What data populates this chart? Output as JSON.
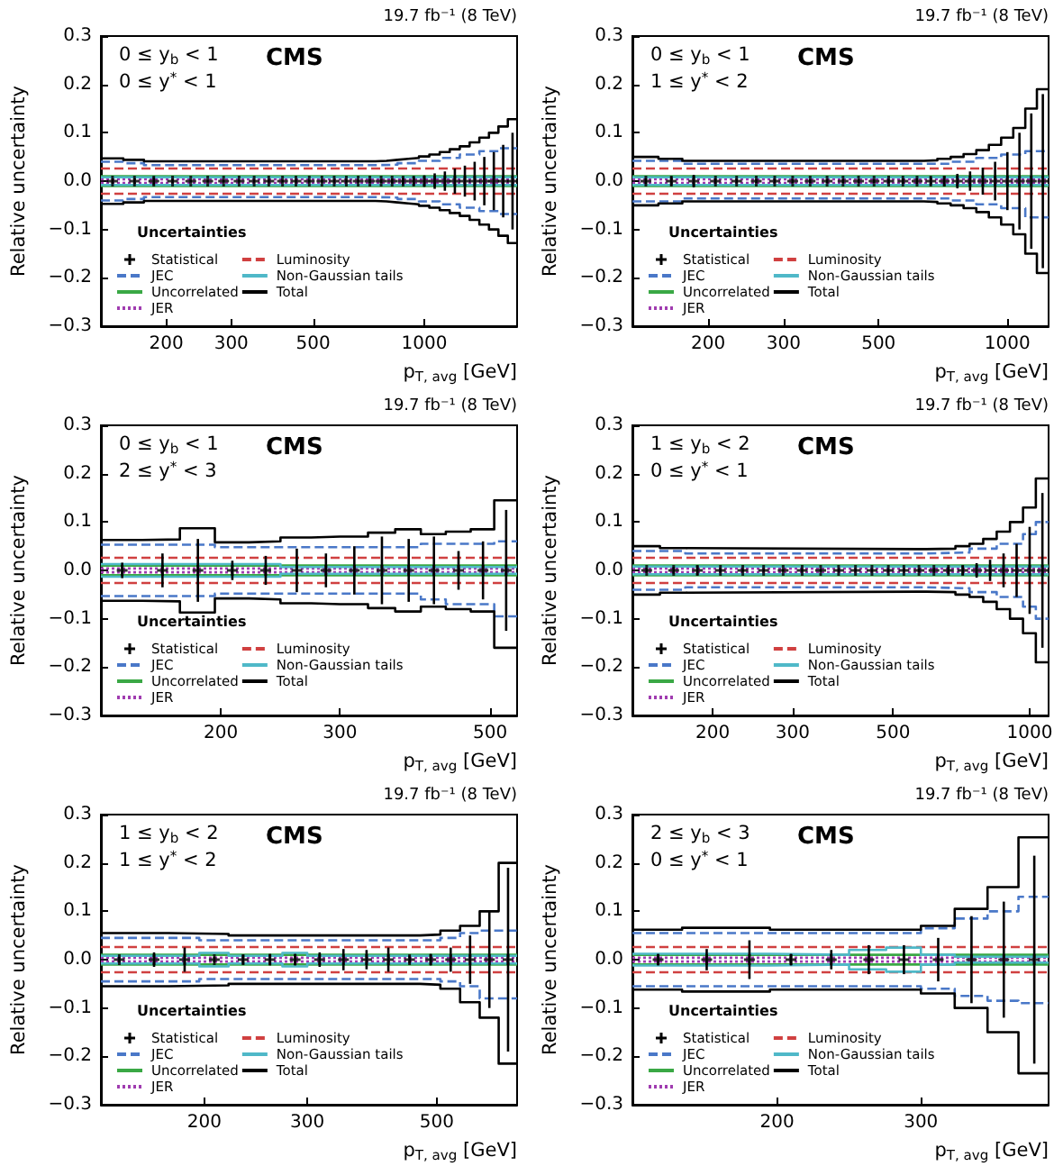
{
  "chart_data": [
    {
      "type": "step",
      "title": "CMS",
      "subtitle": "19.7 fb⁻¹ (8 TeV)",
      "xlabel": "p$_{T, avg}$ [GeV]",
      "ylabel": "Relative uncertainty",
      "legend_title": "Uncertainties",
      "legend": "bottom left",
      "log": "x",
      "xlim": [
        133,
        1784
      ],
      "xticks": [
        200,
        300,
        500,
        1000
      ],
      "ylim": [
        -0.3,
        0.3
      ],
      "yticks": [
        {
          "value": -0.3,
          "label": "−0.3"
        },
        {
          "value": -0.2,
          "label": "−0.2"
        },
        {
          "value": -0.1,
          "label": "−0.1"
        },
        {
          "value": 0,
          "label": "0.0"
        },
        {
          "value": 0.1,
          "label": "0.1"
        },
        {
          "value": 0.2,
          "label": "0.2"
        },
        {
          "value": 0.3,
          "label": "0.3"
        }
      ],
      "annotations": [
        "0 ≤ y$_{b}$ < 1",
        "0 ≤ y$^{*}$ < 1"
      ],
      "series": [
        {
          "name": "Statistical",
          "type": "scatter",
          "color": "#000000",
          "marker": "cross",
          "x": [
            143,
            164,
            185,
            208,
            233,
            259,
            286,
            315,
            346,
            379,
            413,
            449,
            488,
            528,
            570,
            615,
            662,
            712,
            764,
            818,
            876,
            936,
            1000,
            1067,
            1137,
            1210,
            1288,
            1369,
            1454,
            1543,
            1636,
            1734
          ],
          "values": [
            0,
            0,
            0,
            0,
            0,
            0,
            0,
            0,
            0,
            0,
            0,
            0,
            0,
            0,
            0,
            0,
            0,
            0,
            0,
            0,
            0,
            0,
            0,
            0,
            0,
            0,
            0,
            0,
            0,
            0,
            0,
            0
          ],
          "errors": [
            0.005,
            0.006,
            0.008,
            0.004,
            0.003,
            0.003,
            0.003,
            0.003,
            0.003,
            0.003,
            0.003,
            0.003,
            0.003,
            0.003,
            0.003,
            0.003,
            0.003,
            0.004,
            0.004,
            0.005,
            0.007,
            0.009,
            0.012,
            0.016,
            0.02,
            0.026,
            0.032,
            0.04,
            0.05,
            0.06,
            0.075,
            0.1
          ]
        },
        {
          "name": "JEC",
          "color": "#4a78c8",
          "line_style": "dashed",
          "x": [
            133,
            153,
            174,
            737,
            846,
            967,
            1101,
            1248,
            1410,
            1588,
            1784
          ],
          "values": [
            0.04,
            0.037,
            0.033,
            0.034,
            0.037,
            0.042,
            0.048,
            0.055,
            0.062,
            0.068,
            0.068
          ]
        },
        {
          "color": "#4a78c8",
          "line_style": "dashed",
          "x": [
            133,
            153,
            174,
            737,
            846,
            967,
            1101,
            1248,
            1410,
            1588,
            1784
          ],
          "values": [
            -0.04,
            -0.037,
            -0.033,
            -0.034,
            -0.037,
            -0.042,
            -0.048,
            -0.055,
            -0.062,
            -0.068,
            -0.068
          ]
        },
        {
          "name": "Uncorrelated",
          "color": "#3aa845",
          "line_style": "solid",
          "x": [
            133,
            1784
          ],
          "values": [
            0.01,
            0.01
          ]
        },
        {
          "color": "#3aa845",
          "line_style": "solid",
          "x": [
            133,
            1784
          ],
          "values": [
            -0.01,
            -0.01
          ]
        },
        {
          "name": "JER",
          "color": "#a03cb0",
          "line_style": "dotted",
          "x": [
            133,
            1784
          ],
          "values": [
            0.004,
            0.004
          ]
        },
        {
          "color": "#a03cb0",
          "line_style": "dotted",
          "x": [
            133,
            1784
          ],
          "values": [
            -0.004,
            -0.004
          ]
        },
        {
          "name": "Luminosity",
          "color": "#d04040",
          "line_style": "dashed",
          "x": [
            133,
            1784
          ],
          "values": [
            0.026,
            0.026
          ]
        },
        {
          "color": "#d04040",
          "line_style": "dashed",
          "x": [
            133,
            1784
          ],
          "values": [
            -0.026,
            -0.026
          ]
        },
        {
          "name": "Non-Gaussian tails",
          "color": "#4fb8c8",
          "line_style": "solid",
          "x": [
            133,
            1784
          ],
          "values": [
            0.008,
            0.008
          ]
        },
        {
          "color": "#4fb8c8",
          "line_style": "solid",
          "x": [
            133,
            1784
          ],
          "values": [
            -0.008,
            -0.008
          ]
        },
        {
          "name": "Total",
          "color": "#000000",
          "line_style": "solid",
          "x": [
            133,
            153,
            174,
            737,
            790,
            846,
            905,
            967,
            1032,
            1101,
            1172,
            1248,
            1327,
            1410,
            1497,
            1588,
            1684,
            1784
          ],
          "values": [
            0.047,
            0.044,
            0.041,
            0.042,
            0.044,
            0.046,
            0.048,
            0.051,
            0.055,
            0.06,
            0.066,
            0.072,
            0.08,
            0.09,
            0.1,
            0.113,
            0.128,
            0.128
          ]
        },
        {
          "color": "#000000",
          "line_style": "solid",
          "x": [
            133,
            153,
            174,
            737,
            790,
            846,
            905,
            967,
            1032,
            1101,
            1172,
            1248,
            1327,
            1410,
            1497,
            1588,
            1684,
            1784
          ],
          "values": [
            -0.047,
            -0.044,
            -0.041,
            -0.042,
            -0.044,
            -0.046,
            -0.048,
            -0.051,
            -0.055,
            -0.06,
            -0.066,
            -0.072,
            -0.08,
            -0.09,
            -0.1,
            -0.113,
            -0.128,
            -0.128
          ]
        }
      ]
    },
    {
      "type": "step",
      "title": "CMS",
      "subtitle": "19.7 fb⁻¹ (8 TeV)",
      "xlabel": "p$_{T, avg}$ [GeV]",
      "ylabel": "Relative uncertainty",
      "legend_title": "Uncertainties",
      "legend": "bottom left",
      "log": "x",
      "xlim": [
        133,
        1248
      ],
      "xticks": [
        200,
        300,
        500,
        1000
      ],
      "ylim": [
        -0.3,
        0.3
      ],
      "yticks": [
        {
          "value": -0.3,
          "label": "−0.3"
        },
        {
          "value": -0.2,
          "label": "−0.2"
        },
        {
          "value": -0.1,
          "label": "−0.1"
        },
        {
          "value": 0,
          "label": "0.0"
        },
        {
          "value": 0.1,
          "label": "0.1"
        },
        {
          "value": 0.2,
          "label": "0.2"
        },
        {
          "value": 0.3,
          "label": "0.3"
        }
      ],
      "annotations": [
        "0 ≤ y$_{b}$ < 1",
        "1 ≤ y$^{*}$ < 2"
      ],
      "series": [
        {
          "name": "Statistical",
          "type": "scatter",
          "color": "#000000",
          "marker": "cross",
          "x": [
            143,
            164,
            185,
            208,
            233,
            259,
            286,
            315,
            346,
            379,
            413,
            449,
            488,
            528,
            570,
            615,
            662,
            712,
            764,
            818,
            876,
            936,
            1000,
            1067,
            1137,
            1210
          ],
          "values": [
            0,
            0,
            0,
            0,
            0,
            0,
            0,
            0,
            0,
            0,
            0,
            0,
            0,
            0,
            0,
            0,
            0,
            0,
            0,
            0,
            0,
            0,
            0,
            0,
            0,
            0
          ],
          "errors": [
            0.006,
            0.009,
            0.013,
            0.005,
            0.004,
            0.004,
            0.004,
            0.004,
            0.004,
            0.004,
            0.004,
            0.004,
            0.004,
            0.004,
            0.005,
            0.006,
            0.008,
            0.011,
            0.015,
            0.02,
            0.028,
            0.04,
            0.06,
            0.1,
            0.14,
            0.18
          ]
        },
        {
          "name": "JEC",
          "color": "#4a78c8",
          "line_style": "dashed",
          "x": [
            133,
            174,
            638,
            737,
            846,
            967,
            1101,
            1248
          ],
          "values": [
            0.042,
            0.036,
            0.036,
            0.04,
            0.048,
            0.055,
            0.062,
            0.062
          ]
        },
        {
          "color": "#4a78c8",
          "line_style": "dashed",
          "x": [
            133,
            174,
            638,
            737,
            846,
            967,
            1101,
            1248
          ],
          "values": [
            -0.042,
            -0.036,
            -0.036,
            -0.04,
            -0.048,
            -0.056,
            -0.075,
            -0.075
          ]
        },
        {
          "name": "Uncorrelated",
          "color": "#3aa845",
          "line_style": "solid",
          "x": [
            133,
            1248
          ],
          "values": [
            0.01,
            0.01
          ]
        },
        {
          "color": "#3aa845",
          "line_style": "solid",
          "x": [
            133,
            1248
          ],
          "values": [
            -0.01,
            -0.01
          ]
        },
        {
          "name": "JER",
          "color": "#a03cb0",
          "line_style": "dotted",
          "x": [
            133,
            1248
          ],
          "values": [
            0.004,
            0.004
          ]
        },
        {
          "color": "#a03cb0",
          "line_style": "dotted",
          "x": [
            133,
            1248
          ],
          "values": [
            -0.004,
            -0.004
          ]
        },
        {
          "name": "Luminosity",
          "color": "#d04040",
          "line_style": "dashed",
          "x": [
            133,
            1248
          ],
          "values": [
            0.026,
            0.026
          ]
        },
        {
          "color": "#d04040",
          "line_style": "dashed",
          "x": [
            133,
            1248
          ],
          "values": [
            -0.026,
            -0.026
          ]
        },
        {
          "name": "Non-Gaussian tails",
          "color": "#4fb8c8",
          "line_style": "solid",
          "x": [
            133,
            1248
          ],
          "values": [
            0.008,
            0.008
          ]
        },
        {
          "color": "#4fb8c8",
          "line_style": "solid",
          "x": [
            133,
            1248
          ],
          "values": [
            -0.008,
            -0.008
          ]
        },
        {
          "name": "Total",
          "color": "#000000",
          "line_style": "solid",
          "x": [
            133,
            153,
            174,
            638,
            686,
            737,
            790,
            846,
            905,
            967,
            1032,
            1101,
            1172,
            1248
          ],
          "values": [
            0.05,
            0.046,
            0.042,
            0.043,
            0.046,
            0.05,
            0.056,
            0.064,
            0.075,
            0.09,
            0.11,
            0.15,
            0.19,
            0.19
          ]
        },
        {
          "color": "#000000",
          "line_style": "solid",
          "x": [
            133,
            153,
            174,
            638,
            686,
            737,
            790,
            846,
            905,
            967,
            1032,
            1101,
            1172,
            1248
          ],
          "values": [
            -0.05,
            -0.046,
            -0.042,
            -0.043,
            -0.046,
            -0.05,
            -0.056,
            -0.064,
            -0.075,
            -0.09,
            -0.11,
            -0.15,
            -0.19,
            -0.19
          ]
        }
      ]
    },
    {
      "type": "step",
      "title": "CMS",
      "subtitle": "19.7 fb⁻¹ (8 TeV)",
      "xlabel": "p$_{T, avg}$ [GeV]",
      "ylabel": "Relative uncertainty",
      "legend_title": "Uncertainties",
      "legend": "bottom left",
      "log": "x",
      "xlim": [
        133,
        548
      ],
      "xticks": [
        200,
        300,
        500
      ],
      "ylim": [
        -0.3,
        0.3
      ],
      "yticks": [
        {
          "value": -0.3,
          "label": "−0.3"
        },
        {
          "value": -0.2,
          "label": "−0.2"
        },
        {
          "value": -0.1,
          "label": "−0.1"
        },
        {
          "value": 0,
          "label": "0.0"
        },
        {
          "value": 0.1,
          "label": "0.1"
        },
        {
          "value": 0.2,
          "label": "0.2"
        },
        {
          "value": 0.3,
          "label": "0.3"
        }
      ],
      "annotations": [
        "0 ≤ y$_{b}$ < 1",
        "2 ≤ y$^{*}$ < 3"
      ],
      "series": [
        {
          "name": "Statistical",
          "type": "scatter",
          "color": "#000000",
          "marker": "cross",
          "x": [
            143,
            164,
            185,
            208,
            233,
            259,
            286,
            315,
            346,
            379,
            413,
            449,
            488,
            528
          ],
          "values": [
            0,
            0,
            0,
            0,
            0,
            0,
            0,
            0,
            0,
            0,
            0,
            0,
            0,
            0
          ],
          "errors": [
            0.016,
            0.035,
            0.065,
            0.02,
            0.03,
            0.045,
            0.035,
            0.05,
            0.07,
            0.065,
            0.07,
            0.04,
            0.06,
            0.125
          ]
        },
        {
          "name": "JEC",
          "color": "#4a78c8",
          "line_style": "dashed",
          "x": [
            133,
            196,
            272,
            395,
            430,
            507,
            548
          ],
          "values": [
            0.053,
            0.048,
            0.048,
            0.055,
            0.055,
            0.06,
            0.06
          ]
        },
        {
          "color": "#4a78c8",
          "line_style": "dashed",
          "x": [
            133,
            196,
            272,
            395,
            430,
            507,
            548
          ],
          "values": [
            -0.053,
            -0.048,
            -0.048,
            -0.06,
            -0.07,
            -0.095,
            -0.095
          ]
        },
        {
          "name": "Uncorrelated",
          "color": "#3aa845",
          "line_style": "solid",
          "x": [
            133,
            548
          ],
          "values": [
            0.01,
            0.01
          ]
        },
        {
          "color": "#3aa845",
          "line_style": "solid",
          "x": [
            133,
            548
          ],
          "values": [
            -0.01,
            -0.01
          ]
        },
        {
          "name": "JER",
          "color": "#a03cb0",
          "line_style": "dotted",
          "x": [
            133,
            548
          ],
          "values": [
            0.004,
            0.004
          ]
        },
        {
          "color": "#a03cb0",
          "line_style": "dotted",
          "x": [
            133,
            548
          ],
          "values": [
            -0.004,
            -0.004
          ]
        },
        {
          "name": "Luminosity",
          "color": "#d04040",
          "line_style": "dashed",
          "x": [
            133,
            548
          ],
          "values": [
            0.026,
            0.026
          ]
        },
        {
          "color": "#d04040",
          "line_style": "dashed",
          "x": [
            133,
            548
          ],
          "values": [
            -0.026,
            -0.026
          ]
        },
        {
          "name": "Non-Gaussian tails",
          "color": "#4fb8c8",
          "line_style": "solid",
          "x": [
            133,
            245,
            548
          ],
          "values": [
            0.013,
            0.007,
            0.007
          ]
        },
        {
          "color": "#4fb8c8",
          "line_style": "solid",
          "x": [
            133,
            245,
            548
          ],
          "values": [
            -0.013,
            -0.007,
            -0.007
          ]
        },
        {
          "name": "Total",
          "color": "#000000",
          "line_style": "solid",
          "x": [
            133,
            153,
            174,
            196,
            220,
            245,
            272,
            300,
            330,
            362,
            395,
            430,
            468,
            507,
            548
          ],
          "values": [
            0.063,
            0.064,
            0.087,
            0.058,
            0.06,
            0.068,
            0.07,
            0.07,
            0.078,
            0.085,
            0.075,
            0.08,
            0.085,
            0.145,
            0.145
          ]
        },
        {
          "color": "#000000",
          "line_style": "solid",
          "x": [
            133,
            153,
            174,
            196,
            220,
            245,
            272,
            300,
            330,
            362,
            395,
            430,
            468,
            507,
            548
          ],
          "values": [
            -0.063,
            -0.064,
            -0.087,
            -0.058,
            -0.06,
            -0.068,
            -0.07,
            -0.07,
            -0.078,
            -0.085,
            -0.075,
            -0.08,
            -0.085,
            -0.16,
            -0.16
          ]
        }
      ]
    },
    {
      "type": "step",
      "title": "CMS",
      "subtitle": "19.7 fb⁻¹ (8 TeV)",
      "xlabel": "p$_{T, avg}$ [GeV]",
      "ylabel": "Relative uncertainty",
      "legend_title": "Uncertainties",
      "legend": "bottom left",
      "log": "x",
      "xlim": [
        133,
        1101
      ],
      "xticks": [
        200,
        300,
        500,
        1000
      ],
      "ylim": [
        -0.3,
        0.3
      ],
      "yticks": [
        {
          "value": -0.3,
          "label": "−0.3"
        },
        {
          "value": -0.2,
          "label": "−0.2"
        },
        {
          "value": -0.1,
          "label": "−0.1"
        },
        {
          "value": 0,
          "label": "0.0"
        },
        {
          "value": 0.1,
          "label": "0.1"
        },
        {
          "value": 0.2,
          "label": "0.2"
        },
        {
          "value": 0.3,
          "label": "0.3"
        }
      ],
      "annotations": [
        "1 ≤ y$_{b}$ < 2",
        "0 ≤ y$^{*}$ < 1"
      ],
      "series": [
        {
          "name": "Statistical",
          "type": "scatter",
          "color": "#000000",
          "marker": "cross",
          "x": [
            143,
            164,
            185,
            208,
            233,
            259,
            286,
            315,
            346,
            379,
            413,
            449,
            488,
            528,
            570,
            615,
            662,
            712,
            764,
            818,
            876,
            936,
            1000,
            1067
          ],
          "values": [
            0,
            0,
            0,
            0,
            0,
            0,
            0,
            0,
            0,
            0,
            0,
            0,
            0,
            0,
            0,
            0,
            0,
            0,
            0,
            0,
            0,
            0,
            0,
            0
          ],
          "errors": [
            0.005,
            0.007,
            0.01,
            0.004,
            0.003,
            0.003,
            0.003,
            0.003,
            0.003,
            0.003,
            0.003,
            0.003,
            0.003,
            0.003,
            0.004,
            0.005,
            0.007,
            0.01,
            0.015,
            0.022,
            0.035,
            0.055,
            0.09,
            0.16
          ]
        },
        {
          "name": "JEC",
          "color": "#4a78c8",
          "line_style": "dashed",
          "x": [
            133,
            174,
            592,
            737,
            846,
            967,
            1032,
            1101
          ],
          "values": [
            0.04,
            0.035,
            0.037,
            0.045,
            0.055,
            0.075,
            0.1,
            0.1
          ]
        },
        {
          "color": "#4a78c8",
          "line_style": "dashed",
          "x": [
            133,
            174,
            592,
            737,
            846,
            967,
            1032,
            1101
          ],
          "values": [
            -0.04,
            -0.035,
            -0.037,
            -0.045,
            -0.055,
            -0.075,
            -0.1,
            -0.1
          ]
        },
        {
          "name": "Uncorrelated",
          "color": "#3aa845",
          "line_style": "solid",
          "x": [
            133,
            1101
          ],
          "values": [
            0.01,
            0.01
          ]
        },
        {
          "color": "#3aa845",
          "line_style": "solid",
          "x": [
            133,
            1101
          ],
          "values": [
            -0.01,
            -0.01
          ]
        },
        {
          "name": "JER",
          "color": "#a03cb0",
          "line_style": "dotted",
          "x": [
            133,
            1101
          ],
          "values": [
            0.004,
            0.004
          ]
        },
        {
          "color": "#a03cb0",
          "line_style": "dotted",
          "x": [
            133,
            1101
          ],
          "values": [
            -0.004,
            -0.004
          ]
        },
        {
          "name": "Luminosity",
          "color": "#d04040",
          "line_style": "dashed",
          "x": [
            133,
            1101
          ],
          "values": [
            0.026,
            0.026
          ]
        },
        {
          "color": "#d04040",
          "line_style": "dashed",
          "x": [
            133,
            1101
          ],
          "values": [
            -0.026,
            -0.026
          ]
        },
        {
          "name": "Non-Gaussian tails",
          "color": "#4fb8c8",
          "line_style": "solid",
          "x": [
            133,
            1101
          ],
          "values": [
            0.008,
            0.008
          ]
        },
        {
          "color": "#4fb8c8",
          "line_style": "solid",
          "x": [
            133,
            1101
          ],
          "values": [
            -0.008,
            -0.008
          ]
        },
        {
          "name": "Total",
          "color": "#000000",
          "line_style": "solid",
          "x": [
            133,
            153,
            174,
            592,
            686,
            737,
            790,
            846,
            905,
            967,
            1032,
            1101
          ],
          "values": [
            0.05,
            0.046,
            0.044,
            0.045,
            0.05,
            0.055,
            0.065,
            0.08,
            0.1,
            0.13,
            0.19,
            0.19
          ]
        },
        {
          "color": "#000000",
          "line_style": "solid",
          "x": [
            133,
            153,
            174,
            592,
            686,
            737,
            790,
            846,
            905,
            967,
            1032,
            1101
          ],
          "values": [
            -0.05,
            -0.046,
            -0.044,
            -0.045,
            -0.05,
            -0.055,
            -0.065,
            -0.08,
            -0.1,
            -0.13,
            -0.19,
            -0.19
          ]
        }
      ]
    },
    {
      "type": "step",
      "title": "CMS",
      "subtitle": "19.7 fb⁻¹ (8 TeV)",
      "xlabel": "p$_{T, avg}$ [GeV]",
      "ylabel": "Relative uncertainty",
      "legend_title": "Uncertainties",
      "legend": "bottom left",
      "log": "x",
      "xlim": [
        133,
        686
      ],
      "xticks": [
        200,
        300,
        500
      ],
      "ylim": [
        -0.3,
        0.3
      ],
      "yticks": [
        {
          "value": -0.3,
          "label": "−0.3"
        },
        {
          "value": -0.2,
          "label": "−0.2"
        },
        {
          "value": -0.1,
          "label": "−0.1"
        },
        {
          "value": 0,
          "label": "0.0"
        },
        {
          "value": 0.1,
          "label": "0.1"
        },
        {
          "value": 0.2,
          "label": "0.2"
        },
        {
          "value": 0.3,
          "label": "0.3"
        }
      ],
      "annotations": [
        "1 ≤ y$_{b}$ < 2",
        "1 ≤ y$^{*}$ < 2"
      ],
      "series": [
        {
          "name": "Statistical",
          "type": "scatter",
          "color": "#000000",
          "marker": "cross",
          "x": [
            143,
            164,
            185,
            208,
            233,
            259,
            286,
            315,
            346,
            379,
            413,
            449,
            488,
            528,
            570,
            615,
            662
          ],
          "values": [
            0,
            0,
            0,
            0,
            0,
            0,
            0,
            0,
            0,
            0,
            0,
            0,
            0,
            0,
            0,
            0,
            0
          ],
          "errors": [
            0.006,
            0.015,
            0.025,
            0.006,
            0.01,
            0.012,
            0.012,
            0.015,
            0.022,
            0.02,
            0.025,
            0.008,
            0.012,
            0.025,
            0.05,
            0.1,
            0.19
          ]
        },
        {
          "name": "JEC",
          "color": "#4a78c8",
          "line_style": "dashed",
          "x": [
            133,
            196,
            507,
            548,
            592,
            686
          ],
          "values": [
            0.045,
            0.04,
            0.045,
            0.055,
            0.06,
            0.06
          ]
        },
        {
          "color": "#4a78c8",
          "line_style": "dashed",
          "x": [
            133,
            196,
            507,
            548,
            592,
            686
          ],
          "values": [
            -0.045,
            -0.04,
            -0.045,
            -0.055,
            -0.08,
            -0.08
          ]
        },
        {
          "name": "Uncorrelated",
          "color": "#3aa845",
          "line_style": "solid",
          "x": [
            133,
            686
          ],
          "values": [
            0.01,
            0.01
          ]
        },
        {
          "color": "#3aa845",
          "line_style": "solid",
          "x": [
            133,
            686
          ],
          "values": [
            -0.01,
            -0.01
          ]
        },
        {
          "name": "JER",
          "color": "#a03cb0",
          "line_style": "dotted",
          "x": [
            133,
            686
          ],
          "values": [
            0.004,
            0.004
          ]
        },
        {
          "color": "#a03cb0",
          "line_style": "dotted",
          "x": [
            133,
            686
          ],
          "values": [
            -0.004,
            -0.004
          ]
        },
        {
          "name": "Luminosity",
          "color": "#d04040",
          "line_style": "dashed",
          "x": [
            133,
            686
          ],
          "values": [
            0.026,
            0.026
          ]
        },
        {
          "color": "#d04040",
          "line_style": "dashed",
          "x": [
            133,
            686
          ],
          "values": [
            -0.026,
            -0.026
          ]
        },
        {
          "name": "Non-Gaussian tails",
          "color": "#4fb8c8",
          "line_style": "solid",
          "x": [
            133,
            196,
            220,
            272,
            300,
            686
          ],
          "values": [
            0.008,
            0.014,
            0.008,
            0.014,
            0.008,
            0.008
          ]
        },
        {
          "color": "#4fb8c8",
          "line_style": "solid",
          "x": [
            133,
            196,
            220,
            272,
            300,
            686
          ],
          "values": [
            -0.008,
            -0.014,
            -0.008,
            -0.014,
            -0.008,
            -0.008
          ]
        },
        {
          "name": "Total",
          "color": "#000000",
          "line_style": "solid",
          "x": [
            133,
            174,
            220,
            468,
            507,
            548,
            592,
            638,
            686
          ],
          "values": [
            0.055,
            0.053,
            0.05,
            0.052,
            0.06,
            0.07,
            0.1,
            0.2,
            0.2
          ]
        },
        {
          "color": "#000000",
          "line_style": "solid",
          "x": [
            133,
            174,
            220,
            468,
            507,
            548,
            592,
            638,
            686
          ],
          "values": [
            -0.055,
            -0.053,
            -0.05,
            -0.052,
            -0.06,
            -0.088,
            -0.12,
            -0.215,
            -0.215
          ]
        }
      ]
    },
    {
      "type": "step",
      "title": "CMS",
      "subtitle": "19.7 fb⁻¹ (8 TeV)",
      "xlabel": "p$_{T, avg}$ [GeV]",
      "ylabel": "Relative uncertainty",
      "legend_title": "Uncertainties",
      "legend": "bottom left",
      "log": "x",
      "xlim": [
        133,
        430
      ],
      "xticks": [
        200,
        300
      ],
      "ylim": [
        -0.3,
        0.3
      ],
      "yticks": [
        {
          "value": -0.3,
          "label": "−0.3"
        },
        {
          "value": -0.2,
          "label": "−0.2"
        },
        {
          "value": -0.1,
          "label": "−0.1"
        },
        {
          "value": 0,
          "label": "0.0"
        },
        {
          "value": 0.1,
          "label": "0.1"
        },
        {
          "value": 0.2,
          "label": "0.2"
        },
        {
          "value": 0.3,
          "label": "0.3"
        }
      ],
      "annotations": [
        "2 ≤ y$_{b}$ < 3",
        "0 ≤ y$^{*}$ < 1"
      ],
      "series": [
        {
          "name": "Statistical",
          "type": "scatter",
          "color": "#000000",
          "marker": "cross",
          "x": [
            143,
            164,
            185,
            208,
            233,
            259,
            286,
            315,
            346,
            379,
            413
          ],
          "values": [
            0,
            0,
            0,
            0,
            0,
            0,
            0,
            0,
            0,
            0,
            0
          ],
          "errors": [
            0.012,
            0.022,
            0.04,
            0.012,
            0.02,
            0.03,
            0.03,
            0.045,
            0.09,
            0.12,
            0.215
          ]
        },
        {
          "name": "JEC",
          "color": "#4a78c8",
          "line_style": "dashed",
          "x": [
            133,
            300,
            330,
            362,
            395,
            430
          ],
          "values": [
            0.055,
            0.065,
            0.085,
            0.1,
            0.13,
            0.13
          ]
        },
        {
          "color": "#4a78c8",
          "line_style": "dashed",
          "x": [
            133,
            300,
            330,
            362,
            395,
            430
          ],
          "values": [
            -0.055,
            -0.06,
            -0.075,
            -0.085,
            -0.09,
            -0.09
          ]
        },
        {
          "name": "Uncorrelated",
          "color": "#3aa845",
          "line_style": "solid",
          "x": [
            133,
            430
          ],
          "values": [
            0.01,
            0.01
          ]
        },
        {
          "color": "#3aa845",
          "line_style": "solid",
          "x": [
            133,
            430
          ],
          "values": [
            -0.01,
            -0.01
          ]
        },
        {
          "name": "JER",
          "color": "#a03cb0",
          "line_style": "dotted",
          "x": [
            133,
            430
          ],
          "values": [
            0.004,
            0.004
          ]
        },
        {
          "color": "#a03cb0",
          "line_style": "dotted",
          "x": [
            133,
            430
          ],
          "values": [
            -0.004,
            -0.004
          ]
        },
        {
          "name": "Luminosity",
          "color": "#d04040",
          "line_style": "dashed",
          "x": [
            133,
            430
          ],
          "values": [
            0.026,
            0.026
          ]
        },
        {
          "color": "#d04040",
          "line_style": "dashed",
          "x": [
            133,
            430
          ],
          "values": [
            -0.026,
            -0.026
          ]
        },
        {
          "name": "Non-Gaussian tails",
          "color": "#4fb8c8",
          "line_style": "solid",
          "x": [
            133,
            196,
            245,
            272,
            300,
            330,
            430
          ],
          "values": [
            0.012,
            0.01,
            0.02,
            0.025,
            0.01,
            0.006,
            0.006
          ]
        },
        {
          "color": "#4fb8c8",
          "line_style": "solid",
          "x": [
            133,
            196,
            245,
            272,
            300,
            330,
            430
          ],
          "values": [
            -0.012,
            -0.01,
            -0.02,
            -0.025,
            -0.01,
            -0.006,
            -0.006
          ]
        },
        {
          "name": "Total",
          "color": "#000000",
          "line_style": "solid",
          "x": [
            133,
            153,
            196,
            300,
            330,
            362,
            395,
            430
          ],
          "values": [
            0.062,
            0.066,
            0.062,
            0.07,
            0.105,
            0.15,
            0.253,
            0.253
          ]
        },
        {
          "color": "#000000",
          "line_style": "solid",
          "x": [
            133,
            153,
            196,
            300,
            330,
            362,
            395,
            430
          ],
          "values": [
            -0.062,
            -0.066,
            -0.062,
            -0.07,
            -0.1,
            -0.15,
            -0.235,
            -0.235
          ]
        }
      ]
    }
  ]
}
